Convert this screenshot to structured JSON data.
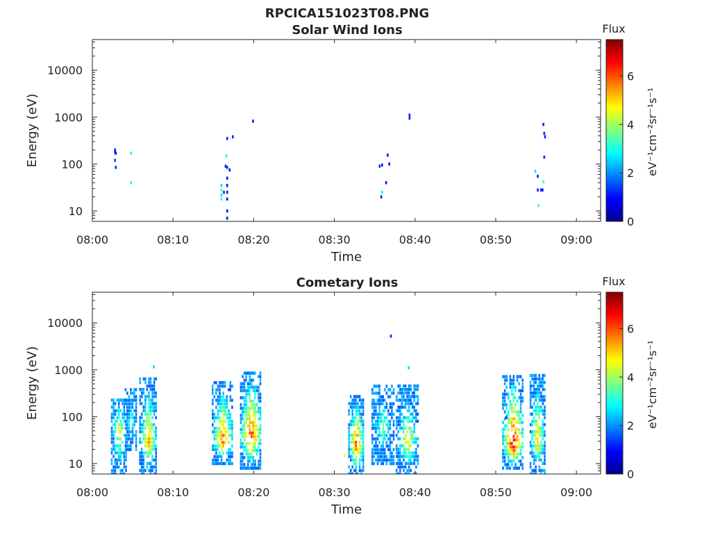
{
  "figure_title": "RPCICA151023T08.PNG",
  "colormap": [
    "#00008f",
    "#0000ff",
    "#0080ff",
    "#00ffff",
    "#80ff80",
    "#ffff00",
    "#ff8000",
    "#ff0000",
    "#800000"
  ],
  "chart_data": [
    {
      "type": "heatmap",
      "title": "Solar Wind Ions",
      "xlabel": "Time",
      "ylabel": "Energy (eV)",
      "x_ticks": [
        "08:00",
        "08:10",
        "08:20",
        "08:30",
        "08:40",
        "08:50",
        "09:00"
      ],
      "x_range_minutes": [
        0,
        63
      ],
      "y_scale": "log",
      "y_ticks": [
        "10",
        "100",
        "1000",
        "10000"
      ],
      "y_range": [
        6,
        45000
      ],
      "colorbar": {
        "title": "Flux",
        "label": "eV⁻¹cm⁻²sr⁻¹s⁻¹",
        "ticks": [
          "0",
          "2",
          "4",
          "6"
        ],
        "range": [
          0,
          7.5
        ]
      },
      "cells": [
        [
          2.7,
          200,
          1.1
        ],
        [
          2.7,
          180,
          1.1
        ],
        [
          2.8,
          170,
          1.1
        ],
        [
          2.7,
          120,
          1.4
        ],
        [
          2.8,
          85,
          1.2
        ],
        [
          4.7,
          170,
          2.8
        ],
        [
          4.7,
          40,
          2.8
        ],
        [
          15.9,
          35,
          2.6
        ],
        [
          15.9,
          28,
          3.5
        ],
        [
          15.9,
          22,
          2.6
        ],
        [
          15.9,
          18,
          3.2
        ],
        [
          16.2,
          25,
          1.3
        ],
        [
          16.4,
          90,
          1.2
        ],
        [
          16.5,
          150,
          2.8
        ],
        [
          16.6,
          85,
          1.2
        ],
        [
          16.6,
          50,
          1.1
        ],
        [
          16.6,
          35,
          1.1
        ],
        [
          16.6,
          25,
          1.1
        ],
        [
          16.6,
          18,
          1.1
        ],
        [
          16.6,
          10,
          1.1
        ],
        [
          16.6,
          7,
          1.1
        ],
        [
          16.6,
          350,
          1.2
        ],
        [
          16.9,
          75,
          1.1
        ],
        [
          17.3,
          380,
          1.2
        ],
        [
          19.8,
          820,
          1.2
        ],
        [
          35.5,
          90,
          1.2
        ],
        [
          35.7,
          20,
          1.2
        ],
        [
          35.8,
          95,
          1.1
        ],
        [
          35.8,
          25,
          2.8
        ],
        [
          36.3,
          40,
          1.1
        ],
        [
          36.5,
          155,
          1.1
        ],
        [
          36.7,
          100,
          1.1
        ],
        [
          39.2,
          1100,
          1.2
        ],
        [
          39.2,
          950,
          1.2
        ],
        [
          54.8,
          70,
          2.7
        ],
        [
          55.1,
          55,
          1.2
        ],
        [
          55.1,
          28,
          1.2
        ],
        [
          55.2,
          13,
          3.4
        ],
        [
          55.5,
          28,
          1.2
        ],
        [
          55.8,
          42,
          3.2
        ],
        [
          55.7,
          28,
          1.2
        ],
        [
          55.9,
          140,
          1.2
        ],
        [
          55.8,
          700,
          1.2
        ],
        [
          55.9,
          450,
          1.2
        ],
        [
          56.0,
          380,
          1.2
        ]
      ]
    },
    {
      "type": "heatmap",
      "title": "Cometary Ions",
      "xlabel": "Time",
      "ylabel": "Energy (eV)",
      "x_ticks": [
        "08:00",
        "08:10",
        "08:20",
        "08:30",
        "08:40",
        "08:50",
        "09:00"
      ],
      "x_range_minutes": [
        0,
        63
      ],
      "y_scale": "log",
      "y_ticks": [
        "10",
        "100",
        "1000",
        "10000"
      ],
      "y_range": [
        6,
        45000
      ],
      "colorbar": {
        "title": "Flux",
        "label": "eV⁻¹cm⁻²sr⁻¹s⁻¹",
        "ticks": [
          "0",
          "2",
          "4",
          "6"
        ],
        "range": [
          0,
          7.5
        ]
      },
      "bursts": [
        {
          "t_start": 2.3,
          "t_end": 4.2,
          "e_low": 6,
          "e_high": 250,
          "e_peak": 50,
          "peak": 4.8
        },
        {
          "t_start": 4.0,
          "t_end": 5.4,
          "e_low": 20,
          "e_high": 420,
          "e_peak": 80,
          "peak": 3.6
        },
        {
          "t_start": 5.8,
          "t_end": 7.9,
          "e_low": 6,
          "e_high": 650,
          "e_peak": 30,
          "peak": 5.6
        },
        {
          "t_start": 14.8,
          "t_end": 17.4,
          "e_low": 10,
          "e_high": 600,
          "e_peak": 30,
          "peak": 6.0
        },
        {
          "t_start": 18.3,
          "t_end": 20.9,
          "e_low": 8,
          "e_high": 850,
          "e_peak": 40,
          "peak": 6.6
        },
        {
          "t_start": 31.7,
          "t_end": 33.6,
          "e_low": 6,
          "e_high": 280,
          "e_peak": 25,
          "peak": 6.4
        },
        {
          "t_start": 34.6,
          "t_end": 37.3,
          "e_low": 10,
          "e_high": 500,
          "e_peak": 60,
          "peak": 3.8
        },
        {
          "t_start": 37.6,
          "t_end": 40.4,
          "e_low": 6,
          "e_high": 450,
          "e_peak": 30,
          "peak": 4.9
        },
        {
          "t_start": 50.8,
          "t_end": 53.4,
          "e_low": 8,
          "e_high": 800,
          "e_peak": 25,
          "peak": 7.0
        },
        {
          "t_start": 54.2,
          "t_end": 56.0,
          "e_low": 6,
          "e_high": 800,
          "e_peak": 30,
          "peak": 5.4
        }
      ],
      "cells": [
        [
          31.2,
          15,
          4.6
        ],
        [
          36.9,
          5200,
          1.2
        ],
        [
          39.1,
          1100,
          2.6
        ],
        [
          51.2,
          95,
          1.2
        ],
        [
          7.5,
          1150,
          2.6
        ]
      ]
    }
  ]
}
